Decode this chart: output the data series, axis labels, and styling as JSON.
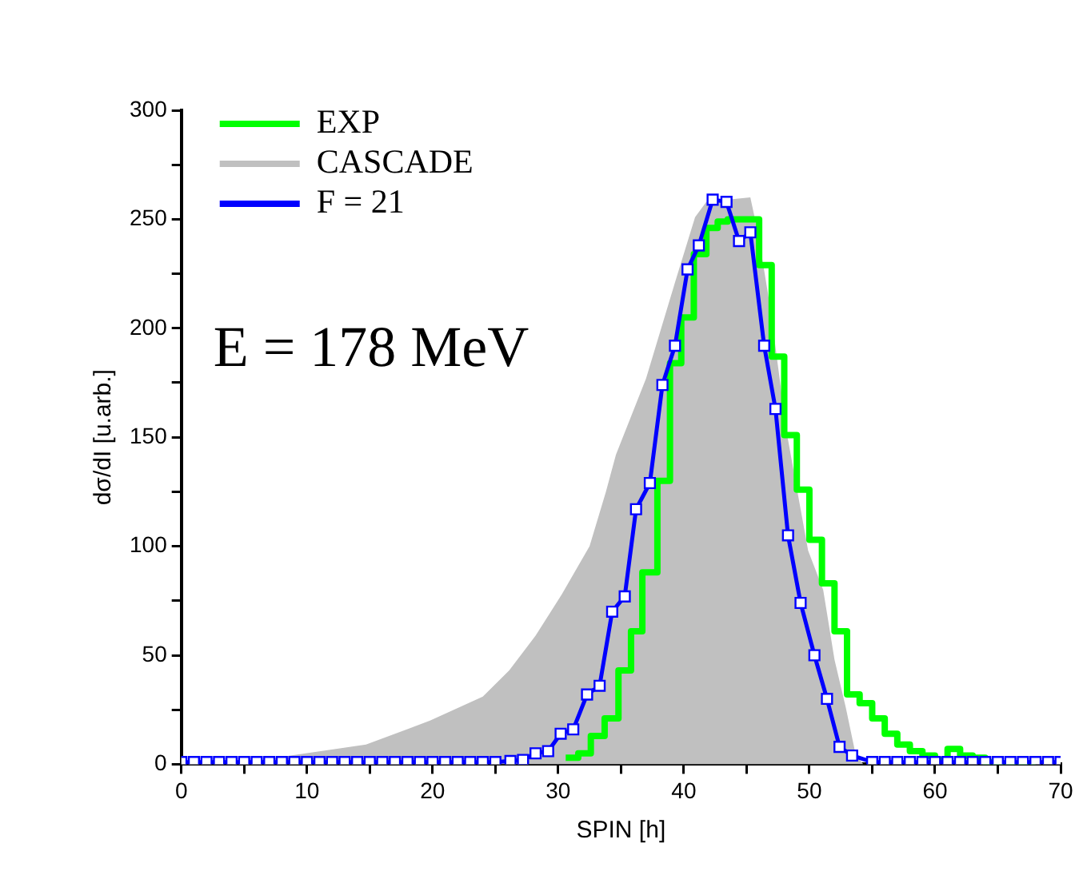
{
  "chart_data": {
    "type": "line",
    "xlabel": "SPIN [h]",
    "ylabel": "dσ/dI [u.arb.]",
    "annotations": [
      "E = 178 MeV"
    ],
    "xlim": [
      0,
      70
    ],
    "ylim": [
      0,
      300
    ],
    "xticks": [
      0,
      {
        "value": 5,
        "label": null
      },
      10,
      {
        "value": 15,
        "label": null
      },
      20,
      {
        "value": 25,
        "label": null
      },
      30,
      {
        "value": 35,
        "label": null
      },
      40,
      {
        "value": 45,
        "label": null
      },
      50,
      {
        "value": 55,
        "label": null
      },
      60,
      {
        "value": 65,
        "label": null
      },
      70
    ],
    "yticks": [
      0,
      {
        "value": 25,
        "label": null
      },
      50,
      {
        "value": 75,
        "label": null
      },
      100,
      {
        "value": 125,
        "label": null
      },
      150,
      {
        "value": 175,
        "label": null
      },
      200,
      {
        "value": 225,
        "label": null
      },
      250,
      {
        "value": 275,
        "label": null
      },
      300
    ],
    "grid": false,
    "legend": "top left",
    "series": [
      {
        "name": "EXP",
        "type": "step",
        "color": "#00ff00",
        "x": [
          30.6,
          31.6,
          32.6,
          33.7,
          34.8,
          35.8,
          36.7,
          37.9,
          38.9,
          39.8,
          40.8,
          41.8,
          42.7,
          43.5,
          46,
          47,
          48,
          49,
          50,
          51,
          52,
          53,
          54,
          55,
          56,
          57,
          58,
          59,
          60,
          61,
          62,
          63,
          64,
          65,
          68
        ],
        "values": [
          3,
          5,
          13,
          21,
          43,
          61,
          88,
          130,
          184,
          205,
          234,
          246,
          249,
          250,
          229,
          187,
          151,
          126,
          103,
          83,
          61,
          32,
          28,
          21,
          14,
          9,
          6,
          4,
          2,
          7,
          4,
          3,
          1,
          0,
          0
        ]
      },
      {
        "name": "CASCADE",
        "type": "area",
        "color": "#c0c0c0",
        "x": [
          4,
          8.7,
          14.7,
          19.8,
          24,
          26.1,
          28.2,
          30.3,
          32.5,
          33.8,
          34.6,
          37,
          39.3,
          40.9,
          41.8,
          45.3,
          45.9,
          46.9,
          48.2,
          49.9,
          51.1,
          52,
          52.9,
          53.7,
          54.3
        ],
        "values": [
          0,
          4,
          9,
          20,
          31,
          43,
          59,
          78,
          100,
          125,
          142,
          177,
          221,
          251,
          258,
          260,
          244,
          209,
          152,
          98,
          80,
          48,
          26,
          4,
          0
        ]
      },
      {
        "name": "F = 21",
        "type": "line",
        "color": "#0000ff",
        "marker": "square",
        "x": [
          0,
          1,
          2,
          3,
          4,
          5,
          6,
          7,
          8,
          9,
          10,
          11,
          12,
          13,
          14,
          15,
          16,
          17,
          18,
          19,
          20,
          21,
          22,
          23,
          24,
          25,
          26.2,
          27.2,
          28.2,
          29.2,
          30.2,
          31.2,
          32.3,
          33.3,
          34.3,
          35.3,
          36.2,
          37.3,
          38.3,
          39.3,
          40.3,
          41.2,
          42.3,
          43.4,
          44.4,
          45.3,
          46.4,
          47.3,
          48.3,
          49.3,
          50.4,
          51.4,
          52.4,
          53.4,
          55,
          56,
          57,
          58,
          59,
          60,
          61,
          62,
          63,
          64,
          65,
          66,
          67,
          68,
          69,
          70
        ],
        "values": [
          1,
          1,
          1,
          1,
          1,
          1,
          1,
          1,
          1,
          1,
          1,
          1,
          1,
          1,
          1,
          1,
          1,
          1,
          1,
          1,
          1,
          1,
          1,
          1,
          1,
          1,
          1.5,
          2,
          5,
          6,
          14,
          16,
          32,
          36,
          70,
          77,
          117,
          129,
          174,
          192,
          227,
          238,
          259,
          258,
          240,
          244,
          192,
          163,
          105,
          74,
          50,
          30,
          8,
          4,
          1,
          1,
          1,
          1,
          1,
          1,
          1,
          1,
          1,
          1,
          1,
          1,
          1,
          1,
          1,
          1
        ]
      }
    ]
  }
}
